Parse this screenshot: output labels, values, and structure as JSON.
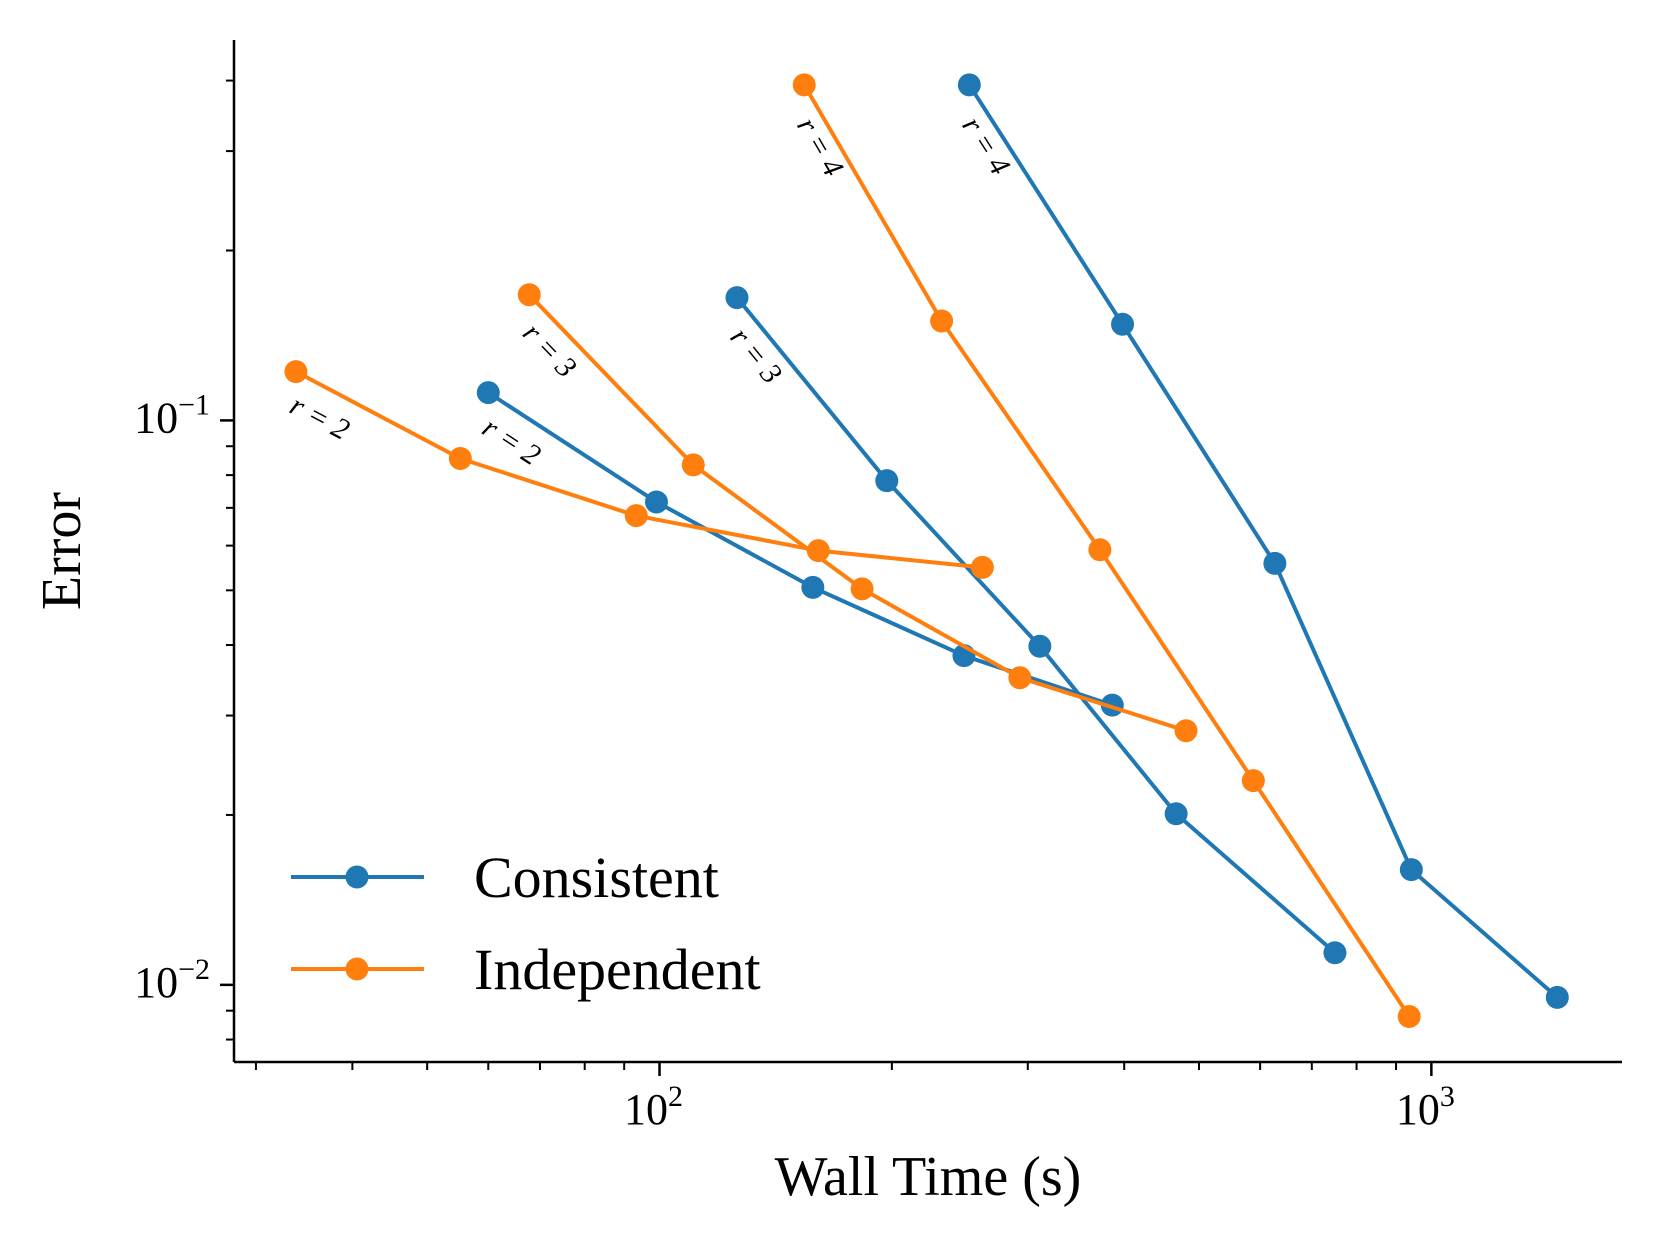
{
  "chart_data": {
    "type": "line",
    "xlabel": "Wall Time (s)",
    "ylabel": "Error",
    "xscale": "log",
    "yscale": "log",
    "xlim": [
      28.1,
      1766
    ],
    "ylim": [
      0.0073,
      0.472
    ],
    "x_ticks": [
      {
        "value": 100,
        "base": "10",
        "exp": "2"
      },
      {
        "value": 1000,
        "base": "10",
        "exp": "3"
      }
    ],
    "y_ticks": [
      {
        "value": 0.1,
        "base": "10",
        "exp": "−1"
      },
      {
        "value": 0.01,
        "base": "10",
        "exp": "−2"
      }
    ],
    "grid": false,
    "legend_position": "lower-left",
    "legend": [
      {
        "name": "Consistent",
        "color": "#1f77b4"
      },
      {
        "name": "Independent",
        "color": "#ff7f0e"
      }
    ],
    "series": [
      {
        "group": "Consistent",
        "color": "#1f77b4",
        "label": "r = 2",
        "x": [
          60.0,
          99.1,
          158,
          248,
          386
        ],
        "y": [
          0.112,
          0.0717,
          0.0506,
          0.0383,
          0.0313
        ]
      },
      {
        "group": "Consistent",
        "color": "#1f77b4",
        "label": "r = 3",
        "x": [
          126,
          197,
          311,
          467,
          750
        ],
        "y": [
          0.165,
          0.0782,
          0.0398,
          0.0201,
          0.0114
        ]
      },
      {
        "group": "Consistent",
        "color": "#1f77b4",
        "label": "r = 4",
        "x": [
          252,
          398,
          627,
          942,
          1456
        ],
        "y": [
          0.393,
          0.148,
          0.0558,
          0.016,
          0.0095
        ]
      },
      {
        "group": "Independent",
        "color": "#ff7f0e",
        "label": "r = 2",
        "x": [
          33.8,
          55.2,
          93.3,
          160.6,
          262
        ],
        "y": [
          0.122,
          0.0856,
          0.0678,
          0.0588,
          0.0549
        ]
      },
      {
        "group": "Independent",
        "color": "#ff7f0e",
        "label": "r = 3",
        "x": [
          67.8,
          110.6,
          183,
          293,
          481
        ],
        "y": [
          0.167,
          0.0834,
          0.0503,
          0.035,
          0.0282
        ]
      },
      {
        "group": "Independent",
        "color": "#ff7f0e",
        "label": "r = 4",
        "x": [
          154,
          232,
          372,
          588,
          936
        ],
        "y": [
          0.393,
          0.15,
          0.059,
          0.023,
          0.00879
        ]
      }
    ]
  }
}
